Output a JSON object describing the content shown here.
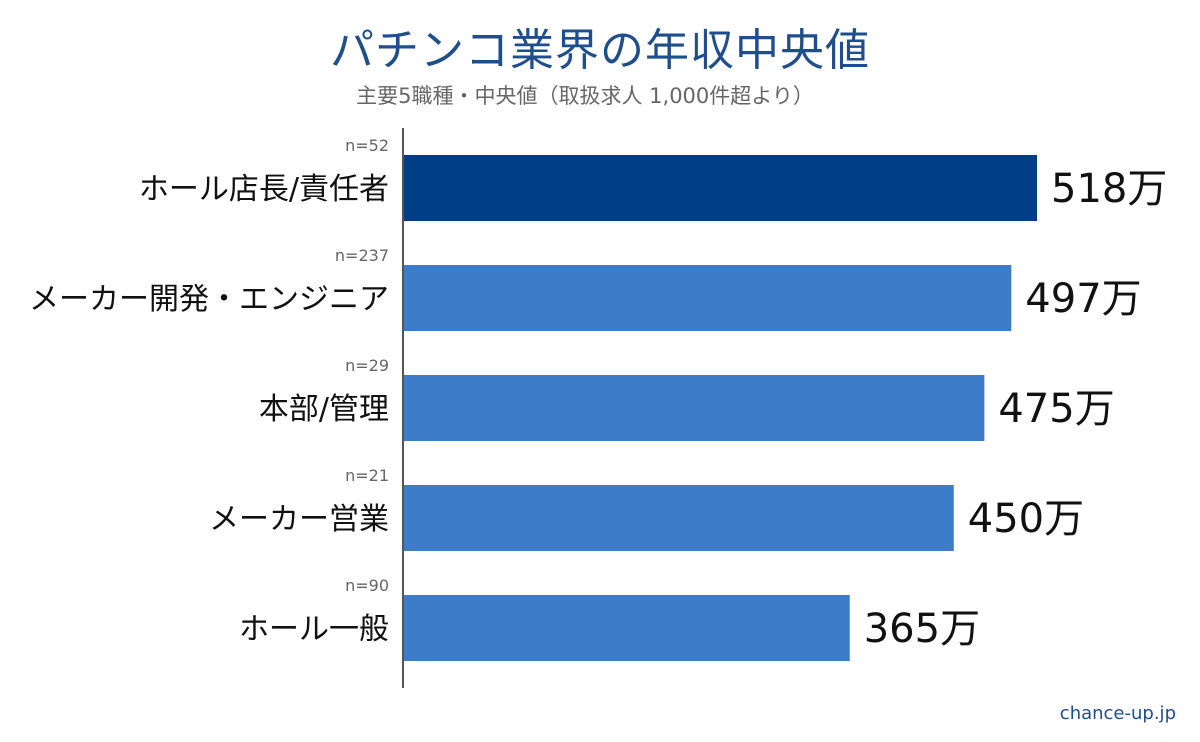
{
  "title": "パチンコ業界の年収中央値",
  "subtitle": "主要5職種・中央値（取扱求人 1,000件超より）",
  "source": "chance-up.jp",
  "colors": {
    "title": "#1f4e8c",
    "highlight_bar": "#003f87",
    "bar": "#3d7cc9",
    "axis": "#555555",
    "n_label": "#666666",
    "category_label": "#111111",
    "value_label": "#111111"
  },
  "chart_data": {
    "type": "bar",
    "orientation": "horizontal",
    "title": "パチンコ業界の年収中央値",
    "subtitle": "主要5職種・中央値（取扱求人 1,000件超より）",
    "categories": [
      "ホール店長/責任者",
      "メーカー開発・エンジニア",
      "本部/管理",
      "メーカー営業",
      "ホール一般"
    ],
    "values": [
      518,
      497,
      475,
      450,
      365
    ],
    "value_labels": [
      "518万",
      "497万",
      "475万",
      "450万",
      "365万"
    ],
    "sample_sizes": [
      "n=52",
      "n=237",
      "n=29",
      "n=21",
      "n=90"
    ],
    "highlight_index": 0,
    "xlim": [
      0,
      600
    ],
    "grid": false,
    "legend": "none"
  }
}
